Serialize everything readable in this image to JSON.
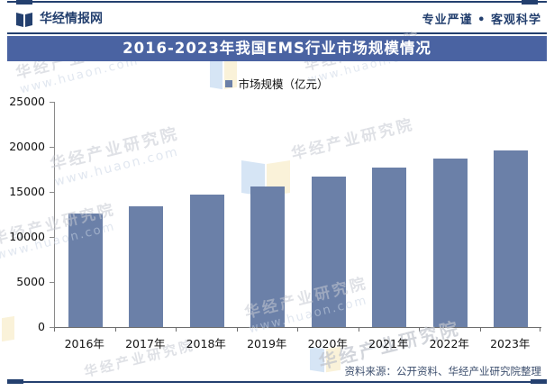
{
  "header": {
    "brand": "华经情报网",
    "slogan": "专业严谨 • 客观科学"
  },
  "title_bar": {
    "title": "2016-2023年我国EMS行业市场规模情况"
  },
  "legend": {
    "label": "市场规模（亿元）"
  },
  "chart_data": {
    "type": "bar",
    "title": "2016-2023年我国EMS行业市场规模情况",
    "categories": [
      "2016年",
      "2017年",
      "2018年",
      "2019年",
      "2020年",
      "2021年",
      "2022年",
      "2023年"
    ],
    "series": [
      {
        "name": "市场规模（亿元）",
        "values": [
          12600,
          13400,
          14650,
          15550,
          16700,
          17650,
          18700,
          19600
        ]
      }
    ],
    "xlabel": "",
    "ylabel": "",
    "ylim": [
      0,
      25000
    ],
    "yticks": [
      0,
      5000,
      10000,
      15000,
      20000,
      25000
    ],
    "bar_color": "#6b80a8",
    "grid": false,
    "legend_position": "top-center"
  },
  "footer": {
    "source": "资料来源：公开资料、华经产业研究院整理"
  },
  "watermark": {
    "text": "华经产业研究院",
    "url": "www.huaon.com"
  },
  "colors": {
    "navy": "#24406f",
    "title_bar_bg": "#4a63a2",
    "bar": "#6b80a8"
  }
}
